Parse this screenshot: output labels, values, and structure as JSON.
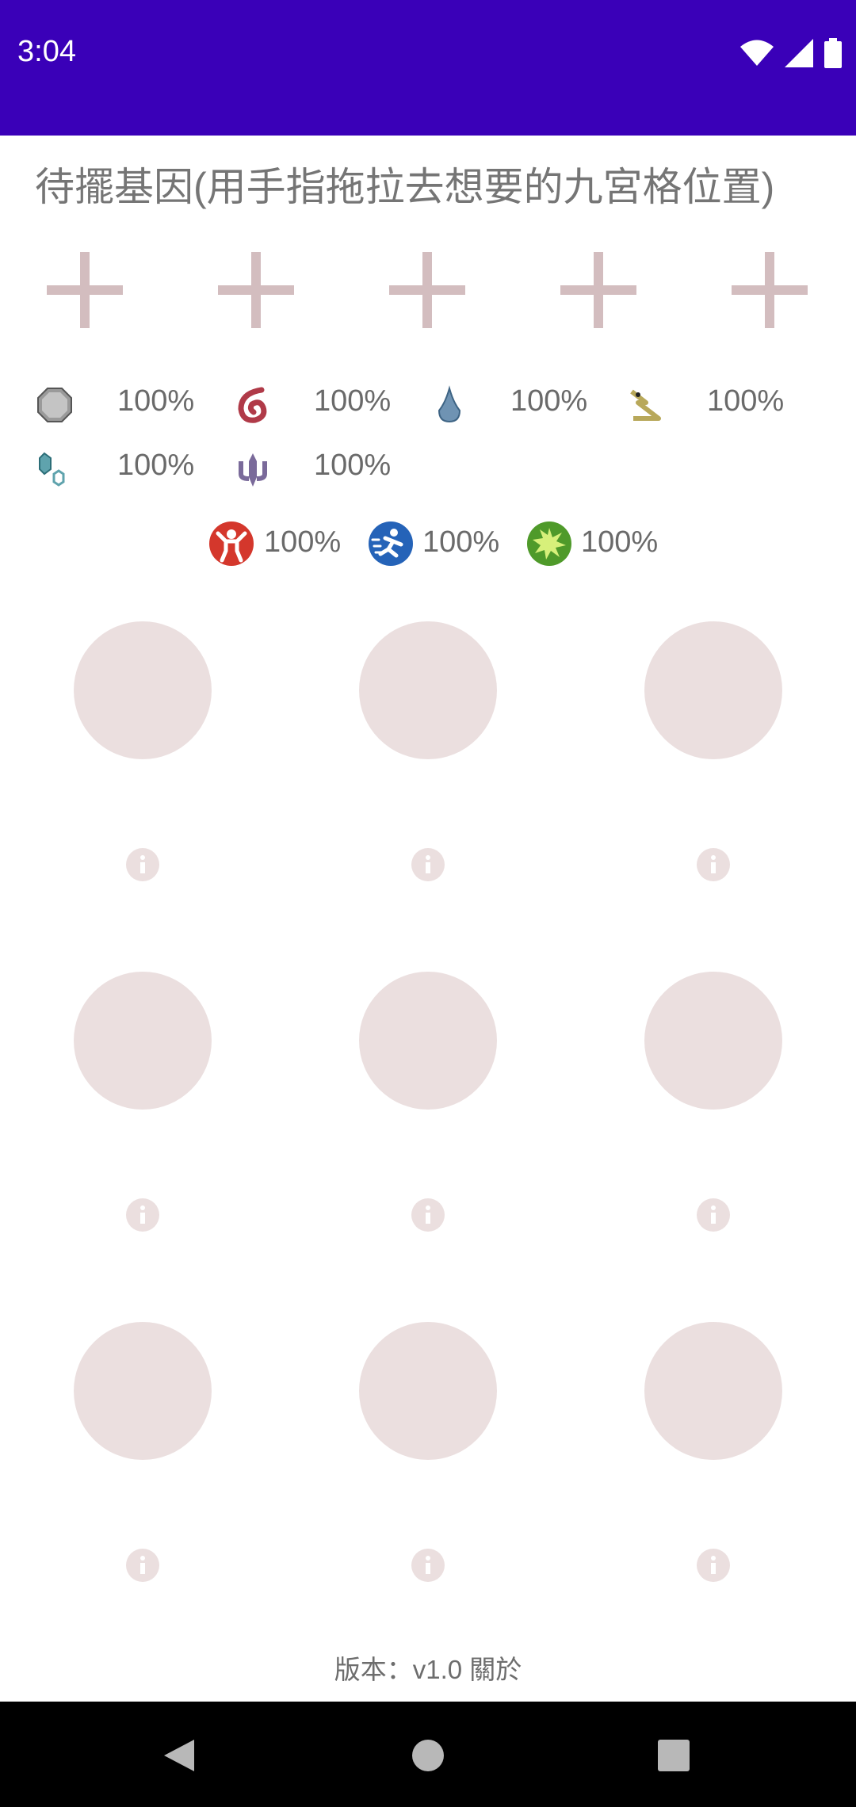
{
  "status_bar": {
    "time": "3:04",
    "icons": [
      "wifi-icon",
      "signal-icon",
      "battery-icon"
    ]
  },
  "page": {
    "title": "待擺基因(用手指拖拉去想要的九宮格位置)"
  },
  "gene_slots": [
    "add",
    "add",
    "add",
    "add",
    "add"
  ],
  "type_stats": [
    {
      "icon": "steel-octagon-icon",
      "percent": "100%"
    },
    {
      "icon": "red-swirl-icon",
      "percent": "100%"
    },
    {
      "icon": "water-drop-icon",
      "percent": "100%"
    },
    {
      "icon": "yellow-arrow-icon",
      "percent": "100%"
    },
    {
      "icon": "teal-crystal-icon",
      "percent": "100%"
    },
    {
      "icon": "purple-trident-icon",
      "percent": "100%"
    }
  ],
  "attribute_stats": [
    {
      "icon": "strength-icon",
      "percent": "100%",
      "color": "#d4372c"
    },
    {
      "icon": "speed-icon",
      "percent": "100%",
      "color": "#2563b8"
    },
    {
      "icon": "burst-icon",
      "percent": "100%",
      "color": "#4f9a2a"
    }
  ],
  "grid": {
    "rows": 3,
    "cols": 3
  },
  "footer": {
    "version_text": "版本：v1.0 關於"
  },
  "colors": {
    "status_bar": "#3a00b8",
    "placeholder": "#ebdfdf",
    "plus": "#d3bdbf"
  }
}
